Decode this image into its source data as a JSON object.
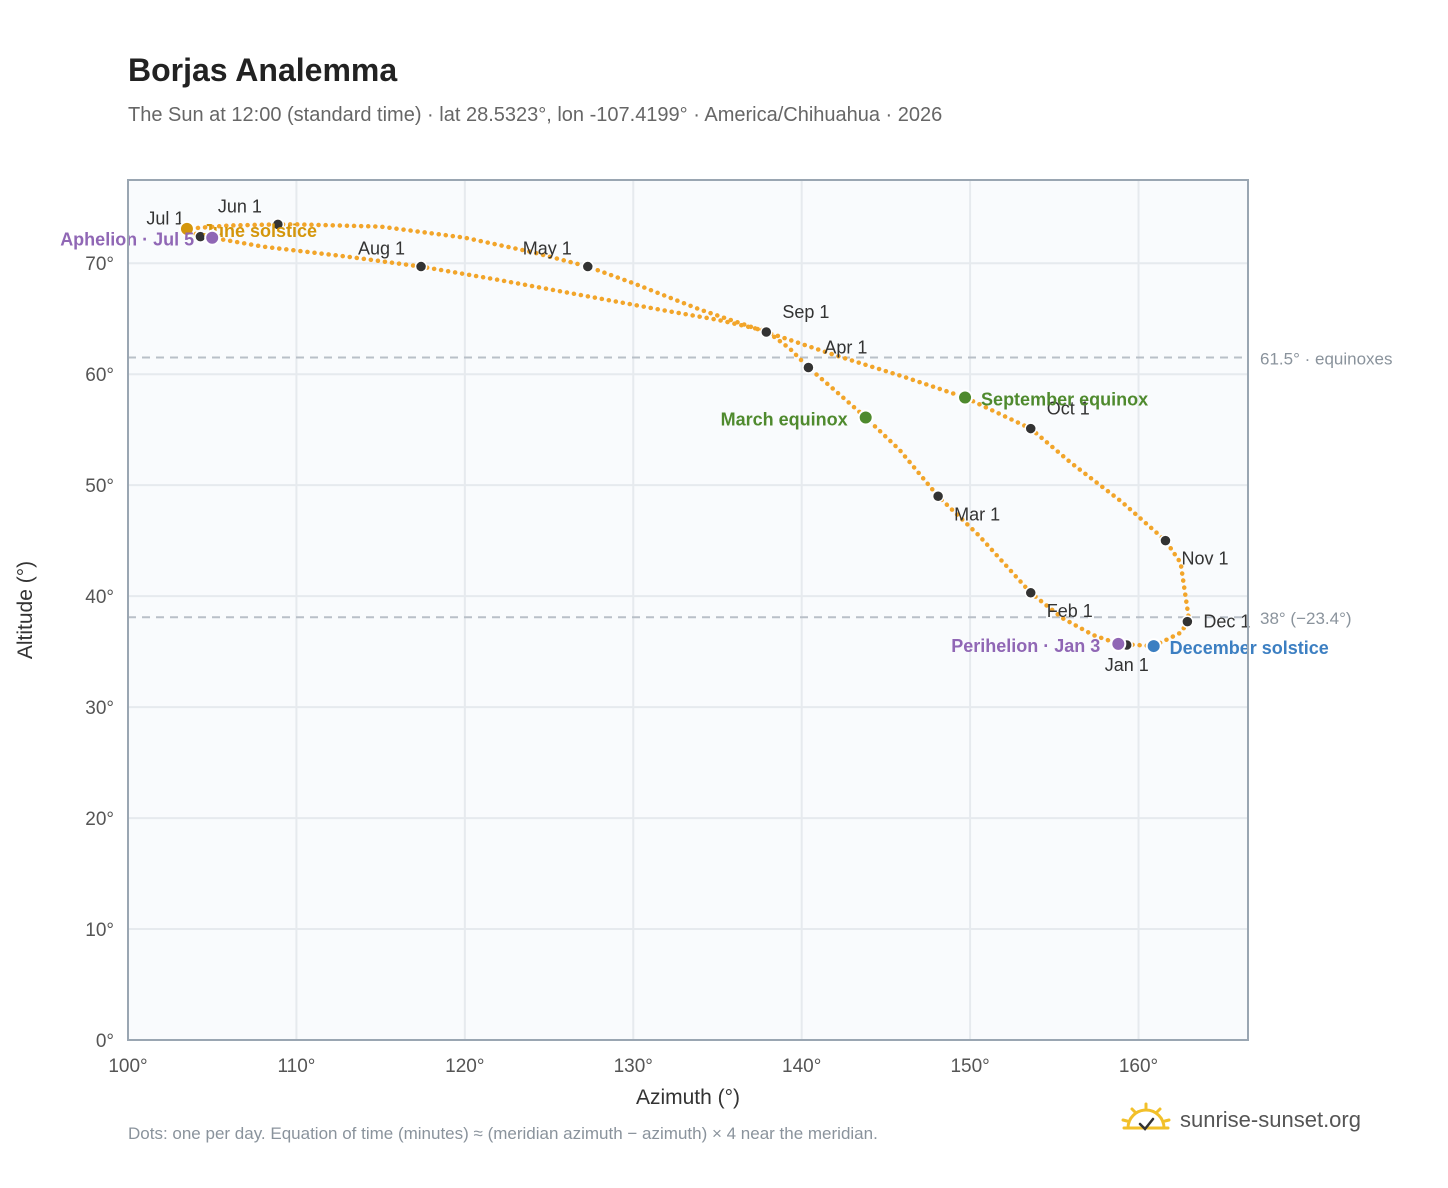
{
  "title": "Borjas Analemma",
  "subtitle": "The Sun at 12:00 (standard time) · lat 28.5323°, lon -107.4199° · America/Chihuahua · 2026",
  "footnote": "Dots: one per day. Equation of time (minutes) ≈ (meridian azimuth − azimuth) × 4 near the meridian.",
  "brand": "sunrise-sunset.org",
  "colors": {
    "curve": "#f2a52a",
    "month_marker": "#333333",
    "equinox": "#4f8a2e",
    "solstice_june": "#d4960c",
    "solstice_december": "#3c7fc2",
    "apsis": "#9067b5",
    "reference_line": "#b9c0c8",
    "plot_background": "#f9fbfd",
    "grid": "#e6eaee",
    "frame": "#9aa6b2"
  },
  "chart_data": {
    "type": "scatter",
    "xlabel": "Azimuth (°)",
    "ylabel": "Altitude (°)",
    "xlim": [
      100,
      166.5
    ],
    "ylim": [
      0,
      77.5
    ],
    "xticks": [
      100,
      110,
      120,
      130,
      140,
      150,
      160
    ],
    "yticks": [
      0,
      10,
      20,
      30,
      40,
      50,
      60,
      70
    ],
    "tick_suffix": "°",
    "grid": true,
    "curve_points": [
      [
        158.8,
        35.7
      ],
      [
        160.9,
        35.5
      ],
      [
        162.5,
        36.7
      ],
      [
        163.0,
        37.8
      ],
      [
        162.5,
        43.0
      ],
      [
        161.6,
        45.0
      ],
      [
        159.0,
        48.5
      ],
      [
        156.0,
        52.0
      ],
      [
        153.6,
        55.1
      ],
      [
        149.7,
        57.9
      ],
      [
        146.0,
        59.8
      ],
      [
        142.0,
        61.7
      ],
      [
        137.9,
        63.8
      ],
      [
        134.0,
        65.8
      ],
      [
        130.0,
        68.2
      ],
      [
        127.3,
        69.7
      ],
      [
        124.0,
        71.0
      ],
      [
        120.0,
        72.3
      ],
      [
        115.0,
        73.3
      ],
      [
        110.0,
        73.5
      ],
      [
        108.9,
        73.5
      ],
      [
        106.0,
        73.4
      ],
      [
        103.5,
        73.1
      ],
      [
        104.3,
        72.4
      ],
      [
        105.0,
        72.3
      ],
      [
        108.0,
        71.5
      ],
      [
        113.0,
        70.6
      ],
      [
        117.4,
        69.7
      ],
      [
        122.0,
        68.5
      ],
      [
        127.0,
        67.1
      ],
      [
        132.0,
        65.7
      ],
      [
        135.0,
        64.9
      ],
      [
        137.9,
        63.9
      ],
      [
        139.3,
        62.3
      ],
      [
        140.4,
        60.6
      ],
      [
        142.0,
        58.5
      ],
      [
        143.8,
        56.1
      ],
      [
        145.8,
        53.2
      ],
      [
        148.1,
        49.0
      ],
      [
        150.5,
        45.5
      ],
      [
        153.6,
        40.3
      ],
      [
        155.5,
        38.0
      ],
      [
        157.3,
        36.5
      ],
      [
        158.8,
        35.7
      ]
    ],
    "month_markers": [
      {
        "label": "Jan 1",
        "x": 159.3,
        "y": 35.6,
        "pos": "below"
      },
      {
        "label": "Feb 1",
        "x": 153.6,
        "y": 40.3,
        "pos": "below-right"
      },
      {
        "label": "Mar 1",
        "x": 148.1,
        "y": 49.0,
        "pos": "below-right"
      },
      {
        "label": "Apr 1",
        "x": 140.4,
        "y": 60.6,
        "pos": "above-right"
      },
      {
        "label": "May 1",
        "x": 127.3,
        "y": 69.7,
        "pos": "above-left"
      },
      {
        "label": "Jun 1",
        "x": 108.9,
        "y": 73.5,
        "pos": "above-left"
      },
      {
        "label": "Jul 1",
        "x": 104.3,
        "y": 72.4,
        "pos": "above-left"
      },
      {
        "label": "Aug 1",
        "x": 117.4,
        "y": 69.7,
        "pos": "above-left"
      },
      {
        "label": "Sep 1",
        "x": 137.9,
        "y": 63.8,
        "pos": "above-right"
      },
      {
        "label": "Oct 1",
        "x": 153.6,
        "y": 55.1,
        "pos": "above-right"
      },
      {
        "label": "Nov 1",
        "x": 161.6,
        "y": 45.0,
        "pos": "below-right"
      },
      {
        "label": "Dec 1",
        "x": 162.9,
        "y": 37.7,
        "pos": "right"
      }
    ],
    "events": [
      {
        "label": "June solstice",
        "x": 103.5,
        "y": 73.1,
        "kind": "solstice_june",
        "pos": "right"
      },
      {
        "label": "Aphelion · Jul 5",
        "x": 105.0,
        "y": 72.3,
        "kind": "apsis",
        "pos": "left"
      },
      {
        "label": "March equinox",
        "x": 143.8,
        "y": 56.1,
        "kind": "equinox",
        "pos": "left"
      },
      {
        "label": "September equinox",
        "x": 149.7,
        "y": 57.9,
        "kind": "equinox",
        "pos": "right"
      },
      {
        "label": "Perihelion · Jan 3",
        "x": 158.8,
        "y": 35.7,
        "kind": "apsis",
        "pos": "left"
      },
      {
        "label": "December solstice",
        "x": 160.9,
        "y": 35.5,
        "kind": "solstice_december",
        "pos": "right"
      }
    ],
    "reference_lines": [
      {
        "y": 61.5,
        "label": "61.5° · equinoxes"
      },
      {
        "y": 38.1,
        "label": "38° (−23.4°)"
      }
    ]
  }
}
